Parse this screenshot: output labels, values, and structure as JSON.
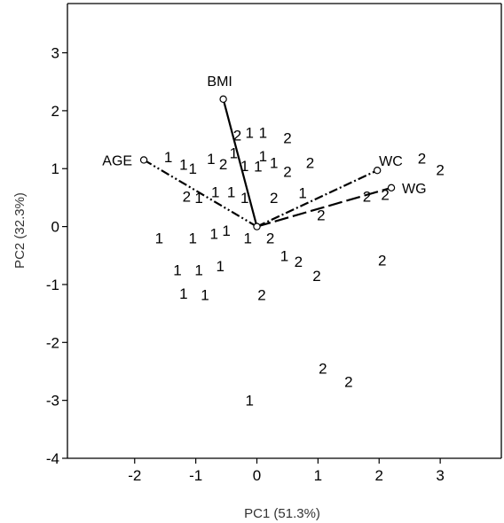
{
  "chart_data": {
    "type": "scatter",
    "title": "",
    "xlabel": "PC1 (51.3%)",
    "ylabel": "PC2 (32.3%)",
    "xlim": [
      -3.1,
      4.0
    ],
    "ylim": [
      -4.0,
      3.85
    ],
    "x_ticks": [
      -2,
      -1,
      0,
      1,
      2,
      3
    ],
    "y_ticks": [
      3,
      2,
      1,
      0,
      -1,
      -2,
      -3,
      -4
    ],
    "grid": false,
    "points": [
      {
        "label": "1",
        "x": -1.45,
        "y": 1.2
      },
      {
        "label": "1",
        "x": -1.2,
        "y": 1.07
      },
      {
        "label": "1",
        "x": -1.05,
        "y": 1.0
      },
      {
        "label": "1",
        "x": -0.75,
        "y": 1.17
      },
      {
        "label": "2",
        "x": -0.55,
        "y": 1.08
      },
      {
        "label": "2",
        "x": -0.32,
        "y": 1.58
      },
      {
        "label": "1",
        "x": -0.12,
        "y": 1.62
      },
      {
        "label": "1",
        "x": 0.1,
        "y": 1.62
      },
      {
        "label": "2",
        "x": 0.5,
        "y": 1.53
      },
      {
        "label": "1",
        "x": -0.38,
        "y": 1.27
      },
      {
        "label": "1",
        "x": 0.1,
        "y": 1.22
      },
      {
        "label": "1",
        "x": -0.2,
        "y": 1.05
      },
      {
        "label": "1",
        "x": 0.02,
        "y": 1.04
      },
      {
        "label": "1",
        "x": 0.28,
        "y": 1.1
      },
      {
        "label": "2",
        "x": 0.5,
        "y": 0.95
      },
      {
        "label": "2",
        "x": 0.87,
        "y": 1.1
      },
      {
        "label": "2",
        "x": -1.15,
        "y": 0.52
      },
      {
        "label": "1",
        "x": -0.95,
        "y": 0.5
      },
      {
        "label": "1",
        "x": -0.68,
        "y": 0.6
      },
      {
        "label": "1",
        "x": -0.42,
        "y": 0.6
      },
      {
        "label": "1",
        "x": -0.2,
        "y": 0.5
      },
      {
        "label": "2",
        "x": 0.28,
        "y": 0.5
      },
      {
        "label": "1",
        "x": 0.75,
        "y": 0.58
      },
      {
        "label": "2",
        "x": 1.8,
        "y": 0.52
      },
      {
        "label": "2",
        "x": 1.05,
        "y": 0.2
      },
      {
        "label": "1",
        "x": -1.6,
        "y": -0.2
      },
      {
        "label": "1",
        "x": -1.05,
        "y": -0.2
      },
      {
        "label": "1",
        "x": -0.7,
        "y": -0.12
      },
      {
        "label": "1",
        "x": -0.5,
        "y": -0.07
      },
      {
        "label": "1",
        "x": -0.15,
        "y": -0.2
      },
      {
        "label": "2",
        "x": 0.22,
        "y": -0.2
      },
      {
        "label": "1",
        "x": 0.45,
        "y": -0.5
      },
      {
        "label": "2",
        "x": 0.68,
        "y": -0.6
      },
      {
        "label": "2",
        "x": 0.98,
        "y": -0.85
      },
      {
        "label": "2",
        "x": 2.05,
        "y": -0.58
      },
      {
        "label": "1",
        "x": -1.3,
        "y": -0.75
      },
      {
        "label": "1",
        "x": -0.95,
        "y": -0.75
      },
      {
        "label": "1",
        "x": -0.6,
        "y": -0.68
      },
      {
        "label": "1",
        "x": -1.2,
        "y": -1.15
      },
      {
        "label": "1",
        "x": -0.85,
        "y": -1.18
      },
      {
        "label": "2",
        "x": 0.08,
        "y": -1.18
      },
      {
        "label": "2",
        "x": 1.08,
        "y": -2.45
      },
      {
        "label": "2",
        "x": 1.5,
        "y": -2.68
      },
      {
        "label": "1",
        "x": -0.12,
        "y": -3.0
      },
      {
        "label": "2",
        "x": 2.7,
        "y": 1.18
      },
      {
        "label": "2",
        "x": 3.0,
        "y": 0.98
      },
      {
        "label": "2",
        "x": 2.1,
        "y": 0.55
      }
    ],
    "vectors": [
      {
        "name": "BMI",
        "x": -0.55,
        "y": 2.2,
        "style": "solid"
      },
      {
        "name": "AGE",
        "x": -1.85,
        "y": 1.15,
        "style": "dashdotdot"
      },
      {
        "name": "WC",
        "x": 1.97,
        "y": 0.97,
        "style": "dashdot"
      },
      {
        "name": "WG",
        "x": 2.2,
        "y": 0.67,
        "style": "dashed"
      }
    ]
  }
}
